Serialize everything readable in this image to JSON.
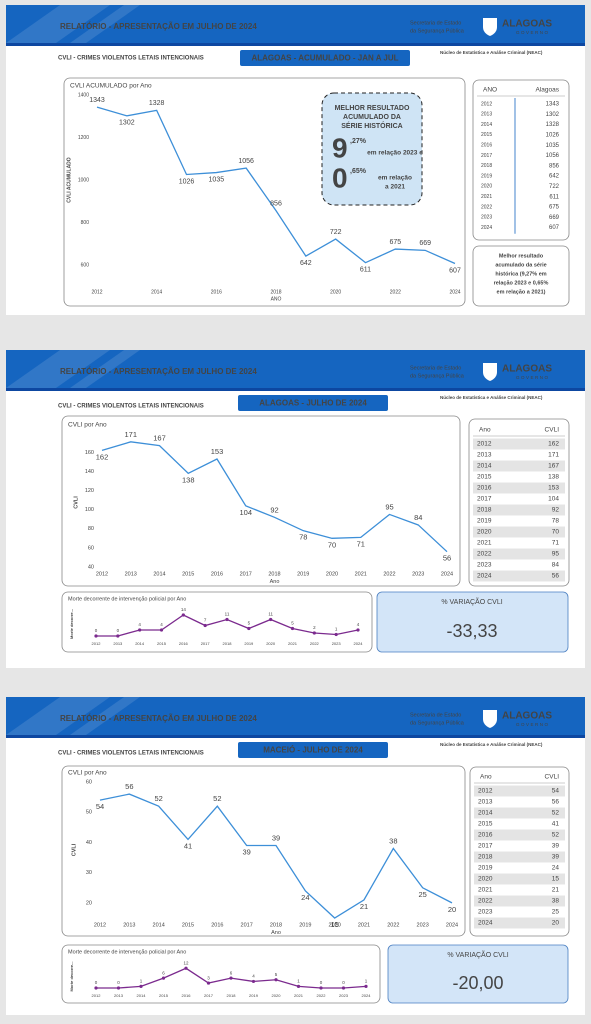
{
  "header": {
    "title": "RELATÓRIO - APRESENTAÇÃO EM JULHO DE 2024",
    "secretaria": [
      "Secretaria de Estado",
      "da Segurança Pública"
    ],
    "logo": "ALAGOAS",
    "logo_sub": "GOVERNO",
    "neac": "Núcleo de Estatística e Análise Criminal (NEAC)",
    "section": "CVLI - CRIMES VIOLENTOS LETAIS INTENCIONAIS"
  },
  "slides": [
    {
      "subtitle": "ALAGOAS - ACUMULADO - JAN A JUL",
      "table_header": [
        "ANO",
        "Alagoas"
      ],
      "callout": {
        "heading": [
          "MELHOR RESULTADO",
          "ACUMULADO DA",
          "SÉRIE HISTÓRICA"
        ],
        "figures": [
          {
            "big": "9",
            "small": ",27%",
            "text": [
              "em relação 2023 e"
            ]
          },
          {
            "big": "0",
            "small": ",65%",
            "text": [
              "em relação",
              "a 2021"
            ]
          }
        ]
      },
      "note": [
        "Melhor resultado",
        "acumulado da série",
        "histórica (9,27% em",
        "relação 2023 e 0,65%",
        "em relação a 2021)"
      ]
    },
    {
      "subtitle": "ALAGOAS - JULHO DE 2024",
      "table_header": [
        "Ano",
        "CVLI"
      ],
      "card": {
        "label": "% VARIAÇÃO CVLI",
        "value": "-33,33"
      }
    },
    {
      "subtitle": "MACEIÓ - JULHO DE 2024",
      "table_header": [
        "Ano",
        "CVLI"
      ],
      "card": {
        "label": "% VARIAÇÃO CVLI",
        "value": "-20,00"
      }
    }
  ],
  "chart_data": [
    {
      "type": "line",
      "title": "CVLI ACUMULADO por Ano",
      "x_label": "ANO",
      "y_label": "CVLI ACUMULADO",
      "color": "#3d8fd8",
      "x": [
        2012,
        2013,
        2014,
        2015,
        2016,
        2017,
        2018,
        2019,
        2020,
        2021,
        2022,
        2023,
        2024
      ],
      "values": [
        1343,
        1302,
        1328,
        1026,
        1035,
        1056,
        856,
        642,
        722,
        611,
        675,
        669,
        607
      ],
      "xlim": [
        2012,
        2024
      ],
      "xticks": [
        2012,
        2014,
        2016,
        2018,
        2020,
        2022,
        2024
      ],
      "ylim": [
        600,
        1400
      ],
      "yticks": [
        600,
        800,
        1000,
        1200,
        1400
      ]
    },
    {
      "type": "line",
      "title": "CVLI por Ano",
      "x_label": "Ano",
      "y_label": "CVLI",
      "color": "#3d8fd8",
      "x": [
        2012,
        2013,
        2014,
        2015,
        2016,
        2017,
        2018,
        2019,
        2020,
        2021,
        2022,
        2023,
        2024
      ],
      "values": [
        162,
        171,
        167,
        138,
        153,
        104,
        92,
        78,
        70,
        71,
        95,
        84,
        56
      ],
      "xlim": [
        2012,
        2024
      ],
      "xticks": [
        2012,
        2013,
        2014,
        2015,
        2016,
        2017,
        2018,
        2019,
        2020,
        2021,
        2022,
        2023,
        2024
      ],
      "ylim": [
        40,
        175
      ],
      "yticks": [
        40,
        60,
        80,
        100,
        120,
        140,
        160
      ]
    },
    {
      "type": "line",
      "title": "Morte decorrente de intervenção policial por Ano",
      "y_label": "Morte decorre...",
      "color": "#7b2a8e",
      "markers": true,
      "x": [
        2012,
        2013,
        2014,
        2015,
        2016,
        2017,
        2018,
        2019,
        2020,
        2021,
        2022,
        2023,
        2024
      ],
      "values": [
        0,
        0,
        4,
        4,
        14,
        7,
        11,
        5,
        11,
        5,
        2,
        1,
        4
      ],
      "xlim": [
        2012,
        2024
      ],
      "xticks": [
        2012,
        2013,
        2014,
        2015,
        2016,
        2017,
        2018,
        2019,
        2020,
        2021,
        2022,
        2023,
        2024
      ],
      "ylim": [
        0,
        16
      ]
    },
    {
      "type": "line",
      "title": "CVLI por Ano",
      "x_label": "Ano",
      "y_label": "CVLI",
      "color": "#3d8fd8",
      "x": [
        2012,
        2013,
        2014,
        2015,
        2016,
        2017,
        2018,
        2019,
        2020,
        2021,
        2022,
        2023,
        2024
      ],
      "values": [
        54,
        56,
        52,
        41,
        52,
        39,
        39,
        24,
        15,
        21,
        38,
        25,
        20
      ],
      "xlim": [
        2012,
        2024
      ],
      "xticks": [
        2012,
        2013,
        2014,
        2015,
        2016,
        2017,
        2018,
        2019,
        2020,
        2021,
        2022,
        2023,
        2024
      ],
      "ylim": [
        15,
        60
      ],
      "yticks": [
        20,
        30,
        40,
        50,
        60
      ]
    },
    {
      "type": "line",
      "title": "Morte decorrente de intervenção policial por Ano",
      "y_label": "Morte decorre...",
      "color": "#7b2a8e",
      "markers": true,
      "x": [
        2012,
        2013,
        2014,
        2015,
        2016,
        2017,
        2018,
        2019,
        2020,
        2021,
        2022,
        2023,
        2024
      ],
      "values": [
        0,
        0,
        1,
        6,
        12,
        3,
        6,
        4,
        5,
        1,
        0,
        0,
        1
      ],
      "xlim": [
        2012,
        2024
      ],
      "xticks": [
        2012,
        2013,
        2014,
        2015,
        2016,
        2017,
        2018,
        2019,
        2020,
        2021,
        2022,
        2023,
        2024
      ],
      "ylim": [
        0,
        14
      ]
    }
  ]
}
